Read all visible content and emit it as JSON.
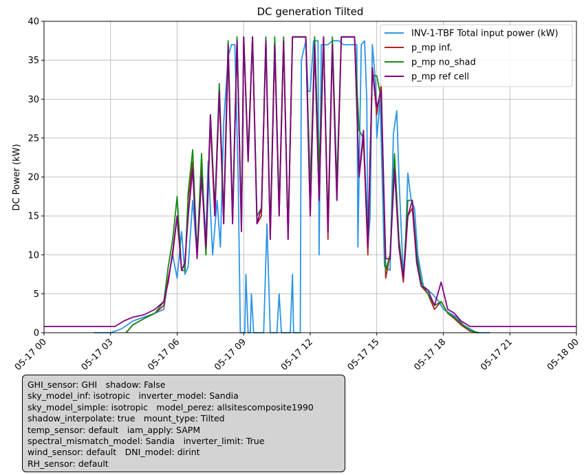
{
  "chart_data": {
    "type": "line",
    "title": "DC generation Tilted",
    "ylabel": "DC Power (kW)",
    "xlabel": "",
    "ylim": [
      0,
      40
    ],
    "xlim": [
      0,
      24
    ],
    "x_unit": "hours after 2024-05-17 00:00",
    "grid": true,
    "legend_position": "top-right",
    "y_ticks": [
      "0",
      "5",
      "10",
      "15",
      "20",
      "25",
      "30",
      "35",
      "40"
    ],
    "x_ticks": [
      "05-17 00",
      "05-17 03",
      "05-17 06",
      "05-17 09",
      "05-17 12",
      "05-17 15",
      "05-17 18",
      "05-17 21",
      "05-18 00"
    ],
    "series": [
      {
        "name": "INV-1-TBF Total input power (kW)",
        "color": "#2b94e6",
        "points": [
          [
            2.25,
            0
          ],
          [
            3,
            0
          ],
          [
            3.5,
            0.5
          ],
          [
            4,
            1.5
          ],
          [
            4.5,
            2
          ],
          [
            5,
            2.5
          ],
          [
            5.4,
            3
          ],
          [
            5.6,
            7
          ],
          [
            5.8,
            10
          ],
          [
            6,
            7
          ],
          [
            6.2,
            13
          ],
          [
            6.35,
            7.5
          ],
          [
            6.5,
            8.5
          ],
          [
            6.7,
            17
          ],
          [
            6.9,
            10
          ],
          [
            7.1,
            21
          ],
          [
            7.3,
            12
          ],
          [
            7.4,
            22
          ],
          [
            7.6,
            10
          ],
          [
            7.8,
            17
          ],
          [
            7.95,
            11
          ],
          [
            8.1,
            27
          ],
          [
            8.3,
            35.5
          ],
          [
            8.45,
            37
          ],
          [
            8.6,
            37
          ],
          [
            8.75,
            20
          ],
          [
            8.85,
            0
          ],
          [
            9.05,
            0
          ],
          [
            9.1,
            7.5
          ],
          [
            9.2,
            0
          ],
          [
            9.3,
            0
          ],
          [
            9.35,
            5
          ],
          [
            9.45,
            0
          ],
          [
            9.65,
            0
          ],
          [
            9.9,
            0
          ],
          [
            10.05,
            14
          ],
          [
            10.2,
            0
          ],
          [
            10.5,
            0
          ],
          [
            10.6,
            5
          ],
          [
            10.7,
            0
          ],
          [
            11.1,
            0
          ],
          [
            11.2,
            7.5
          ],
          [
            11.25,
            0
          ],
          [
            11.55,
            0
          ],
          [
            11.6,
            35
          ],
          [
            11.8,
            37.5
          ],
          [
            11.9,
            31
          ],
          [
            12,
            31
          ],
          [
            12.15,
            37.5
          ],
          [
            12.35,
            37.5
          ],
          [
            12.4,
            10
          ],
          [
            12.5,
            37
          ],
          [
            12.8,
            37
          ],
          [
            13,
            37.5
          ],
          [
            13.3,
            37.5
          ],
          [
            13.5,
            37
          ],
          [
            14.1,
            37
          ],
          [
            14.15,
            11
          ],
          [
            14.3,
            37
          ],
          [
            14.45,
            37.5
          ],
          [
            14.55,
            30
          ],
          [
            14.6,
            11
          ],
          [
            14.7,
            15
          ],
          [
            14.8,
            37
          ],
          [
            14.95,
            32
          ],
          [
            15,
            25
          ],
          [
            15.15,
            30
          ],
          [
            15.35,
            8.5
          ],
          [
            15.6,
            8
          ],
          [
            15.75,
            25.5
          ],
          [
            15.9,
            28.5
          ],
          [
            16,
            20
          ],
          [
            16.2,
            7
          ],
          [
            16.3,
            12
          ],
          [
            16.4,
            20.5
          ],
          [
            16.55,
            17
          ],
          [
            16.7,
            16
          ],
          [
            16.85,
            10
          ],
          [
            17.1,
            6
          ],
          [
            17.5,
            5
          ],
          [
            17.8,
            4
          ],
          [
            18,
            3
          ],
          [
            18.3,
            2.5
          ],
          [
            18.6,
            2
          ],
          [
            18.9,
            1
          ],
          [
            19.2,
            0.5
          ],
          [
            19.5,
            0
          ],
          [
            20.1,
            0
          ]
        ]
      },
      {
        "name": "p_mp inf.",
        "color": "#b22222",
        "points": [
          [
            3.7,
            0
          ],
          [
            4,
            1
          ],
          [
            4.5,
            1.8
          ],
          [
            5,
            2.5
          ],
          [
            5.4,
            3.5
          ],
          [
            5.6,
            7
          ],
          [
            5.8,
            10
          ],
          [
            6,
            15
          ],
          [
            6.2,
            8
          ],
          [
            6.35,
            8
          ],
          [
            6.5,
            17
          ],
          [
            6.7,
            22
          ],
          [
            6.9,
            10
          ],
          [
            7.1,
            21
          ],
          [
            7.3,
            10
          ],
          [
            7.5,
            27
          ],
          [
            7.7,
            15
          ],
          [
            7.9,
            31
          ],
          [
            8.1,
            14
          ],
          [
            8.3,
            36
          ],
          [
            8.5,
            14
          ],
          [
            8.7,
            37.5
          ],
          [
            8.9,
            13
          ],
          [
            9,
            38
          ],
          [
            9.2,
            22
          ],
          [
            9.4,
            38
          ],
          [
            9.6,
            14
          ],
          [
            9.8,
            15
          ],
          [
            10,
            37.5
          ],
          [
            10.2,
            12
          ],
          [
            10.4,
            37
          ],
          [
            10.6,
            15
          ],
          [
            10.8,
            37.5
          ],
          [
            11,
            12
          ],
          [
            11.2,
            38
          ],
          [
            11.5,
            38
          ],
          [
            11.8,
            38
          ],
          [
            12,
            15
          ],
          [
            12.2,
            37
          ],
          [
            12.4,
            17
          ],
          [
            12.6,
            38
          ],
          [
            12.8,
            12
          ],
          [
            13,
            37
          ],
          [
            13.2,
            17
          ],
          [
            13.4,
            38
          ],
          [
            14,
            38
          ],
          [
            14.2,
            20
          ],
          [
            14.4,
            25
          ],
          [
            14.6,
            10
          ],
          [
            14.8,
            34
          ],
          [
            15,
            28
          ],
          [
            15.2,
            32
          ],
          [
            15.4,
            7
          ],
          [
            15.6,
            10
          ],
          [
            15.8,
            22
          ],
          [
            16,
            11
          ],
          [
            16.2,
            6.5
          ],
          [
            16.4,
            15
          ],
          [
            16.6,
            16
          ],
          [
            16.8,
            9
          ],
          [
            17,
            6
          ],
          [
            17.3,
            5
          ],
          [
            17.6,
            3
          ],
          [
            17.9,
            4
          ],
          [
            18.2,
            2.5
          ],
          [
            18.5,
            1.8
          ],
          [
            18.8,
            1
          ],
          [
            19.2,
            0.2
          ],
          [
            19.6,
            0
          ]
        ]
      },
      {
        "name": "p_mp no_shad",
        "color": "#118a11",
        "points": [
          [
            3.7,
            0
          ],
          [
            4,
            1
          ],
          [
            4.5,
            1.8
          ],
          [
            5,
            2.5
          ],
          [
            5.4,
            4
          ],
          [
            5.6,
            8.5
          ],
          [
            5.8,
            12
          ],
          [
            6,
            17.5
          ],
          [
            6.2,
            8
          ],
          [
            6.35,
            8
          ],
          [
            6.5,
            18
          ],
          [
            6.7,
            23.5
          ],
          [
            6.9,
            10
          ],
          [
            7.1,
            23
          ],
          [
            7.3,
            10
          ],
          [
            7.5,
            28
          ],
          [
            7.7,
            16
          ],
          [
            7.9,
            32
          ],
          [
            8.1,
            15
          ],
          [
            8.3,
            37.5
          ],
          [
            8.5,
            15
          ],
          [
            8.7,
            38
          ],
          [
            8.9,
            14
          ],
          [
            9,
            38
          ],
          [
            9.2,
            23
          ],
          [
            9.4,
            38
          ],
          [
            9.6,
            15
          ],
          [
            9.8,
            16
          ],
          [
            10,
            38
          ],
          [
            10.2,
            13
          ],
          [
            10.4,
            38
          ],
          [
            10.6,
            16
          ],
          [
            10.8,
            38
          ],
          [
            11,
            13
          ],
          [
            11.2,
            38
          ],
          [
            11.5,
            38
          ],
          [
            11.8,
            38
          ],
          [
            12,
            18
          ],
          [
            12.2,
            38
          ],
          [
            12.4,
            21
          ],
          [
            12.6,
            38
          ],
          [
            12.8,
            14
          ],
          [
            13,
            38
          ],
          [
            13.2,
            19
          ],
          [
            13.4,
            38
          ],
          [
            14,
            38
          ],
          [
            14.2,
            26
          ],
          [
            14.4,
            25
          ],
          [
            14.6,
            12
          ],
          [
            14.8,
            33
          ],
          [
            15,
            33
          ],
          [
            15.2,
            30
          ],
          [
            15.4,
            8
          ],
          [
            15.6,
            10
          ],
          [
            15.8,
            23
          ],
          [
            16,
            12
          ],
          [
            16.2,
            7
          ],
          [
            16.4,
            17
          ],
          [
            16.6,
            17
          ],
          [
            16.8,
            10
          ],
          [
            17,
            6.5
          ],
          [
            17.3,
            5
          ],
          [
            17.6,
            3.5
          ],
          [
            17.9,
            4
          ],
          [
            18.2,
            2.5
          ],
          [
            18.5,
            2
          ],
          [
            18.8,
            1.2
          ],
          [
            19.2,
            0.3
          ],
          [
            19.6,
            0
          ]
        ]
      },
      {
        "name": "p_mp ref cell",
        "color": "#7f007f",
        "points": [
          [
            0,
            0.8
          ],
          [
            3.2,
            0.8
          ],
          [
            3.6,
            1.5
          ],
          [
            4,
            2
          ],
          [
            4.5,
            2.3
          ],
          [
            5,
            3
          ],
          [
            5.4,
            4
          ],
          [
            5.6,
            6.5
          ],
          [
            5.8,
            10.5
          ],
          [
            6,
            15
          ],
          [
            6.2,
            8
          ],
          [
            6.35,
            9
          ],
          [
            6.5,
            15
          ],
          [
            6.7,
            21
          ],
          [
            6.9,
            9.5
          ],
          [
            7.1,
            20
          ],
          [
            7.3,
            11
          ],
          [
            7.5,
            28
          ],
          [
            7.7,
            15
          ],
          [
            7.9,
            31
          ],
          [
            8.1,
            14
          ],
          [
            8.3,
            37
          ],
          [
            8.5,
            14
          ],
          [
            8.7,
            37.5
          ],
          [
            8.9,
            13
          ],
          [
            9,
            38
          ],
          [
            9.2,
            22
          ],
          [
            9.4,
            38
          ],
          [
            9.6,
            14
          ],
          [
            9.8,
            16
          ],
          [
            10,
            37.5
          ],
          [
            10.2,
            12
          ],
          [
            10.4,
            37
          ],
          [
            10.6,
            15
          ],
          [
            10.8,
            37.5
          ],
          [
            11,
            12
          ],
          [
            11.2,
            38
          ],
          [
            11.5,
            38
          ],
          [
            11.8,
            38
          ],
          [
            12,
            15
          ],
          [
            12.2,
            37
          ],
          [
            12.4,
            17
          ],
          [
            12.6,
            38
          ],
          [
            12.8,
            13
          ],
          [
            13,
            37
          ],
          [
            13.2,
            17
          ],
          [
            13.4,
            38
          ],
          [
            14,
            38
          ],
          [
            14.2,
            20
          ],
          [
            14.4,
            26
          ],
          [
            14.6,
            11
          ],
          [
            14.8,
            34
          ],
          [
            15,
            29
          ],
          [
            15.2,
            31
          ],
          [
            15.4,
            9.5
          ],
          [
            15.6,
            9.5
          ],
          [
            15.8,
            21
          ],
          [
            16,
            11
          ],
          [
            16.2,
            7
          ],
          [
            16.4,
            15
          ],
          [
            16.6,
            17
          ],
          [
            16.8,
            9
          ],
          [
            17,
            6
          ],
          [
            17.3,
            5.5
          ],
          [
            17.6,
            3.5
          ],
          [
            17.9,
            6.5
          ],
          [
            18.2,
            3
          ],
          [
            18.5,
            2.5
          ],
          [
            18.8,
            1.5
          ],
          [
            19.2,
            0.8
          ],
          [
            24,
            0.8
          ]
        ]
      }
    ]
  },
  "info_box": {
    "lines": [
      "GHI_sensor: GHI shadow: False",
      "sky_model_inf: isotropic inverter_model: Sandia",
      "sky_model_simple: isotropic model_perez: allsitescomposite1990",
      "shadow_interpolate: true mount_type: Tilted",
      "temp_sensor: default iam_apply: SAPM",
      "spectral_mismatch_model: Sandia inverter_limit: True",
      "wind_sensor: default DNI_model: dirint",
      "RH_sensor: default"
    ]
  }
}
